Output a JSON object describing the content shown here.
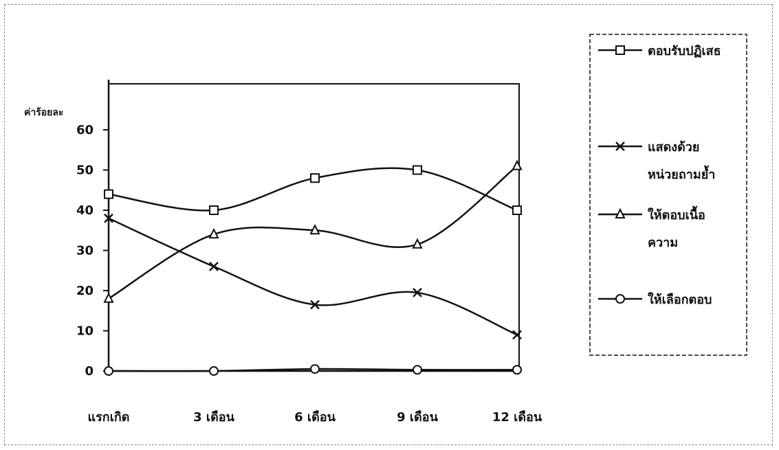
{
  "chart_data": {
    "type": "line",
    "ylabel": "ค่าร้อยละ",
    "xlabel": "",
    "title": "",
    "ylim": [
      0,
      65
    ],
    "yticks": [
      0,
      10,
      20,
      30,
      40,
      50,
      60
    ],
    "categories": [
      "แรกเกิด",
      "3 เดือน",
      "6 เดือน",
      "9 เดือน",
      "12 เดือน"
    ],
    "series": [
      {
        "name": "ตอบรับปฏิเสธ",
        "marker": "square",
        "values": [
          44,
          40,
          48,
          50,
          40
        ]
      },
      {
        "name": "แสดงด้วยหน่วยถามย้ำ",
        "name_lines": [
          "แสดงด้วย",
          "หน่วยถามย้ำ"
        ],
        "marker": "x",
        "values": [
          38,
          26,
          16.5,
          19.5,
          9
        ]
      },
      {
        "name": "ให้ตอบเนื้อความ",
        "name_lines": [
          "ให้ตอบเนื้อ",
          "ความ"
        ],
        "marker": "triangle",
        "values": [
          18,
          34,
          35,
          31.5,
          51
        ]
      },
      {
        "name": "ให้เลือกตอบ",
        "marker": "circle",
        "values": [
          0,
          0,
          0.5,
          0.3,
          0.3
        ]
      }
    ],
    "legend_position": "right",
    "grid": false,
    "line_color": "#111111"
  }
}
